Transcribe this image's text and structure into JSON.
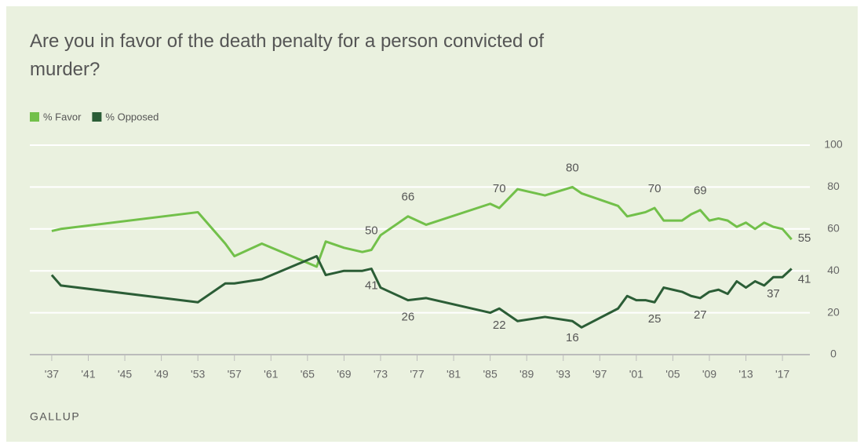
{
  "chart_data": {
    "type": "line",
    "title": "Are you in favor of the death penalty for a person convicted of murder?",
    "source": "GALLUP",
    "x": [
      1937,
      1938,
      1953,
      1956,
      1957,
      1960,
      1966,
      1967,
      1969,
      1971,
      1972,
      1973,
      1976,
      1978,
      1985,
      1986,
      1988,
      1991,
      1994,
      1995,
      1999,
      2000,
      2001,
      2002,
      2003,
      2004,
      2005,
      2006,
      2007,
      2008,
      2009,
      2010,
      2011,
      2012,
      2013,
      2014,
      2015,
      2016,
      2017,
      2018
    ],
    "series": [
      {
        "name": "% Favor",
        "color": "#72c04a",
        "values": [
          59,
          60,
          68,
          53,
          47,
          53,
          42,
          54,
          51,
          49,
          50,
          57,
          66,
          62,
          72,
          70,
          79,
          76,
          80,
          77,
          71,
          66,
          67,
          68,
          70,
          64,
          64,
          64,
          67,
          69,
          64,
          65,
          64,
          61,
          63,
          60,
          63,
          61,
          60,
          55
        ],
        "value_labels": [
          null,
          null,
          null,
          null,
          null,
          null,
          null,
          null,
          null,
          null,
          50,
          null,
          66,
          null,
          null,
          70,
          null,
          null,
          80,
          null,
          null,
          null,
          null,
          null,
          70,
          null,
          null,
          null,
          null,
          69,
          null,
          null,
          null,
          null,
          null,
          null,
          null,
          null,
          null,
          55
        ]
      },
      {
        "name": "% Opposed",
        "color": "#2b5d36",
        "values": [
          38,
          33,
          25,
          34,
          34,
          36,
          47,
          38,
          40,
          40,
          41,
          32,
          26,
          27,
          20,
          22,
          16,
          18,
          16,
          13,
          22,
          28,
          26,
          26,
          25,
          32,
          31,
          30,
          28,
          27,
          30,
          31,
          29,
          35,
          32,
          35,
          33,
          37,
          37,
          41
        ],
        "value_labels": [
          null,
          null,
          null,
          null,
          null,
          null,
          null,
          null,
          null,
          null,
          41,
          null,
          26,
          null,
          null,
          22,
          null,
          null,
          16,
          null,
          null,
          null,
          null,
          null,
          25,
          null,
          null,
          null,
          null,
          27,
          null,
          null,
          null,
          null,
          null,
          null,
          null,
          37,
          null,
          41
        ]
      }
    ],
    "xlim": [
      1934.6,
      2020
    ],
    "xticks": [
      {
        "value": 1937,
        "label": "'37"
      },
      {
        "value": 1941,
        "label": "'41"
      },
      {
        "value": 1945,
        "label": "'45"
      },
      {
        "value": 1949,
        "label": "'49"
      },
      {
        "value": 1953,
        "label": "'53"
      },
      {
        "value": 1957,
        "label": "'57"
      },
      {
        "value": 1961,
        "label": "'61"
      },
      {
        "value": 1965,
        "label": "'65"
      },
      {
        "value": 1969,
        "label": "'69"
      },
      {
        "value": 1973,
        "label": "'73"
      },
      {
        "value": 1977,
        "label": "'77"
      },
      {
        "value": 1981,
        "label": "'81"
      },
      {
        "value": 1985,
        "label": "'85"
      },
      {
        "value": 1989,
        "label": "'89"
      },
      {
        "value": 1993,
        "label": "'93"
      },
      {
        "value": 1997,
        "label": "'97"
      },
      {
        "value": 2001,
        "label": "'01"
      },
      {
        "value": 2005,
        "label": "'05"
      },
      {
        "value": 2009,
        "label": "'09"
      },
      {
        "value": 2013,
        "label": "'13"
      },
      {
        "value": 2017,
        "label": "'17"
      }
    ],
    "ylim": [
      0,
      100
    ],
    "yticks": [
      0,
      20,
      40,
      60,
      80,
      100
    ],
    "grid": true
  }
}
